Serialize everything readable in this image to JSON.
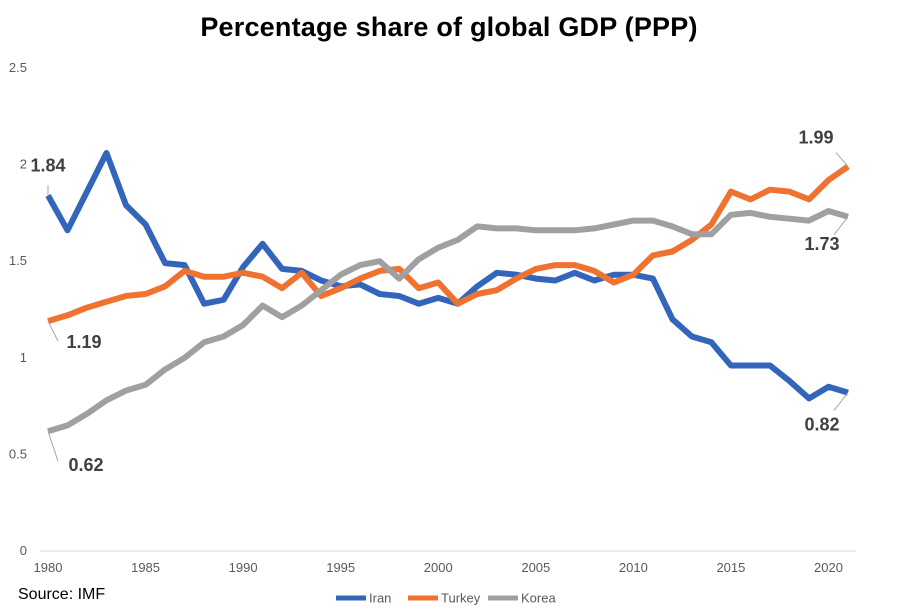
{
  "chart_data": {
    "type": "line",
    "title": "Percentage share of global GDP (PPP)",
    "xlabel": "",
    "ylabel": "",
    "xlim": [
      1980,
      2021
    ],
    "ylim": [
      0,
      2.5
    ],
    "grid": false,
    "legend_position": "bottom",
    "x_ticks": [
      "1980",
      "1985",
      "1990",
      "1995",
      "2000",
      "2005",
      "2010",
      "2015",
      "2020"
    ],
    "y_ticks": [
      "0",
      "0.5",
      "1",
      "1.5",
      "2",
      "2.5"
    ],
    "x": [
      1980,
      1981,
      1982,
      1983,
      1984,
      1985,
      1986,
      1987,
      1988,
      1989,
      1990,
      1991,
      1992,
      1993,
      1994,
      1995,
      1996,
      1997,
      1998,
      1999,
      2000,
      2001,
      2002,
      2003,
      2004,
      2005,
      2006,
      2007,
      2008,
      2009,
      2010,
      2011,
      2012,
      2013,
      2014,
      2015,
      2016,
      2017,
      2018,
      2019,
      2020,
      2021
    ],
    "series": [
      {
        "name": "Iran",
        "color": "#3366bb",
        "values": [
          1.84,
          1.66,
          1.86,
          2.06,
          1.79,
          1.69,
          1.49,
          1.48,
          1.28,
          1.3,
          1.47,
          1.59,
          1.46,
          1.45,
          1.4,
          1.37,
          1.38,
          1.33,
          1.32,
          1.28,
          1.31,
          1.28,
          1.37,
          1.44,
          1.43,
          1.41,
          1.4,
          1.44,
          1.4,
          1.43,
          1.43,
          1.41,
          1.2,
          1.11,
          1.08,
          0.96,
          0.96,
          0.96,
          0.88,
          0.79,
          0.85,
          0.82
        ]
      },
      {
        "name": "Turkey",
        "color": "#f07230",
        "values": [
          1.19,
          1.22,
          1.26,
          1.29,
          1.32,
          1.33,
          1.37,
          1.45,
          1.42,
          1.42,
          1.44,
          1.42,
          1.36,
          1.44,
          1.32,
          1.36,
          1.41,
          1.45,
          1.46,
          1.36,
          1.39,
          1.28,
          1.33,
          1.35,
          1.41,
          1.46,
          1.48,
          1.48,
          1.45,
          1.39,
          1.43,
          1.53,
          1.55,
          1.61,
          1.69,
          1.86,
          1.82,
          1.87,
          1.86,
          1.82,
          1.92,
          1.99
        ]
      },
      {
        "name": "Korea",
        "color": "#a0a0a0",
        "values": [
          0.62,
          0.65,
          0.71,
          0.78,
          0.83,
          0.86,
          0.94,
          1.0,
          1.08,
          1.11,
          1.17,
          1.27,
          1.21,
          1.27,
          1.35,
          1.43,
          1.48,
          1.5,
          1.41,
          1.51,
          1.57,
          1.61,
          1.68,
          1.67,
          1.67,
          1.66,
          1.66,
          1.66,
          1.67,
          1.69,
          1.71,
          1.71,
          1.68,
          1.64,
          1.64,
          1.74,
          1.75,
          1.73,
          1.72,
          1.71,
          1.76,
          1.73
        ]
      }
    ],
    "annotations": [
      {
        "series": "Iran",
        "text": "1.84"
      },
      {
        "series": "Turkey",
        "text": "1.19"
      },
      {
        "series": "Korea",
        "text": "0.62"
      },
      {
        "series": "Turkey",
        "text": "1.99"
      },
      {
        "series": "Korea",
        "text": "1.73"
      },
      {
        "series": "Iran",
        "text": "0.82"
      }
    ]
  },
  "source": "Source: IMF"
}
